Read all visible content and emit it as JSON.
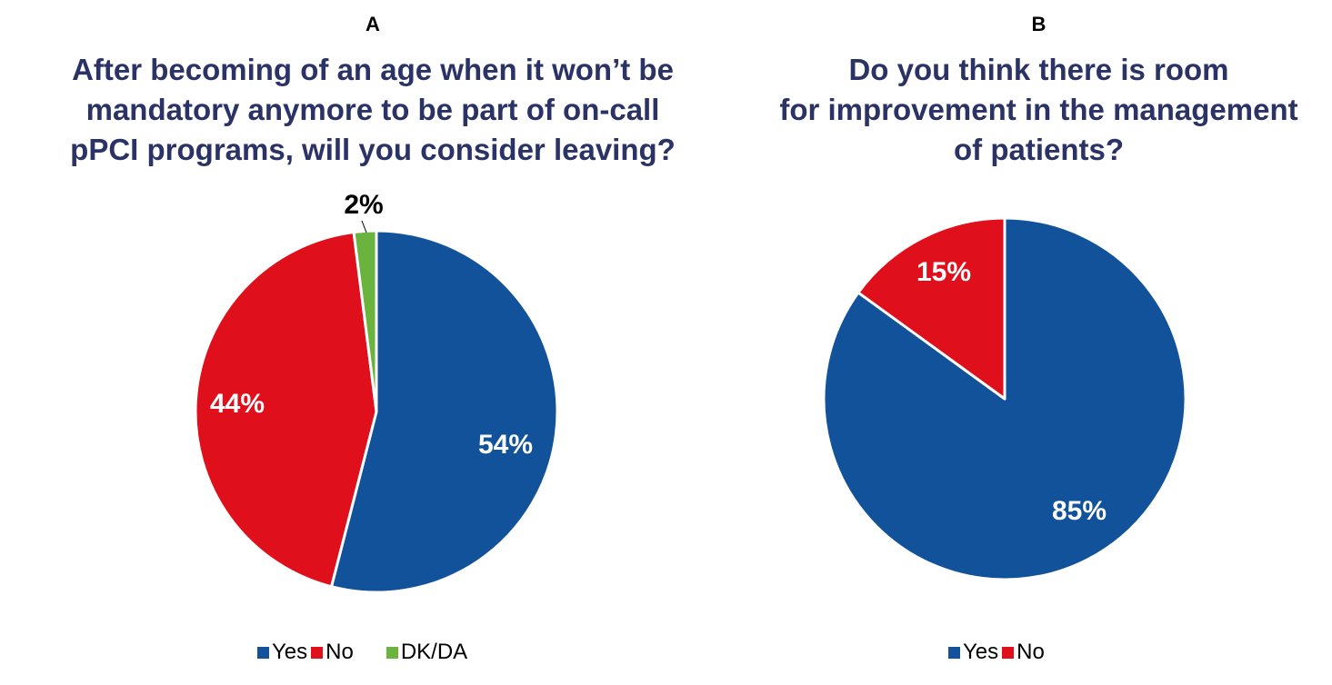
{
  "colors": {
    "yes": "#11529b",
    "no": "#e00f1c",
    "dkda": "#6ab33f",
    "title": "#2b3366"
  },
  "chart_data": [
    {
      "type": "pie",
      "panel_label": "A",
      "title_lines": [
        "After becoming of an age when it won’t be",
        "mandatory anymore to be part of on-call",
        "pPCI programs, will you consider leaving?"
      ],
      "slices": [
        {
          "name": "Yes",
          "value": 54,
          "label": "54%",
          "color": "#11529b"
        },
        {
          "name": "No",
          "value": 44,
          "label": "44%",
          "color": "#e00f1c"
        },
        {
          "name": "DK/DA",
          "value": 2,
          "label": "2%",
          "color": "#6ab33f"
        }
      ],
      "legend": [
        "Yes",
        "No",
        "DK/DA"
      ]
    },
    {
      "type": "pie",
      "panel_label": "B",
      "title_lines": [
        "Do you think there is room",
        "for improvement in the management",
        "of patients?"
      ],
      "slices": [
        {
          "name": "Yes",
          "value": 85,
          "label": "85%",
          "color": "#11529b"
        },
        {
          "name": "No",
          "value": 15,
          "label": "15%",
          "color": "#e00f1c"
        }
      ],
      "legend": [
        "Yes",
        "No"
      ]
    }
  ]
}
